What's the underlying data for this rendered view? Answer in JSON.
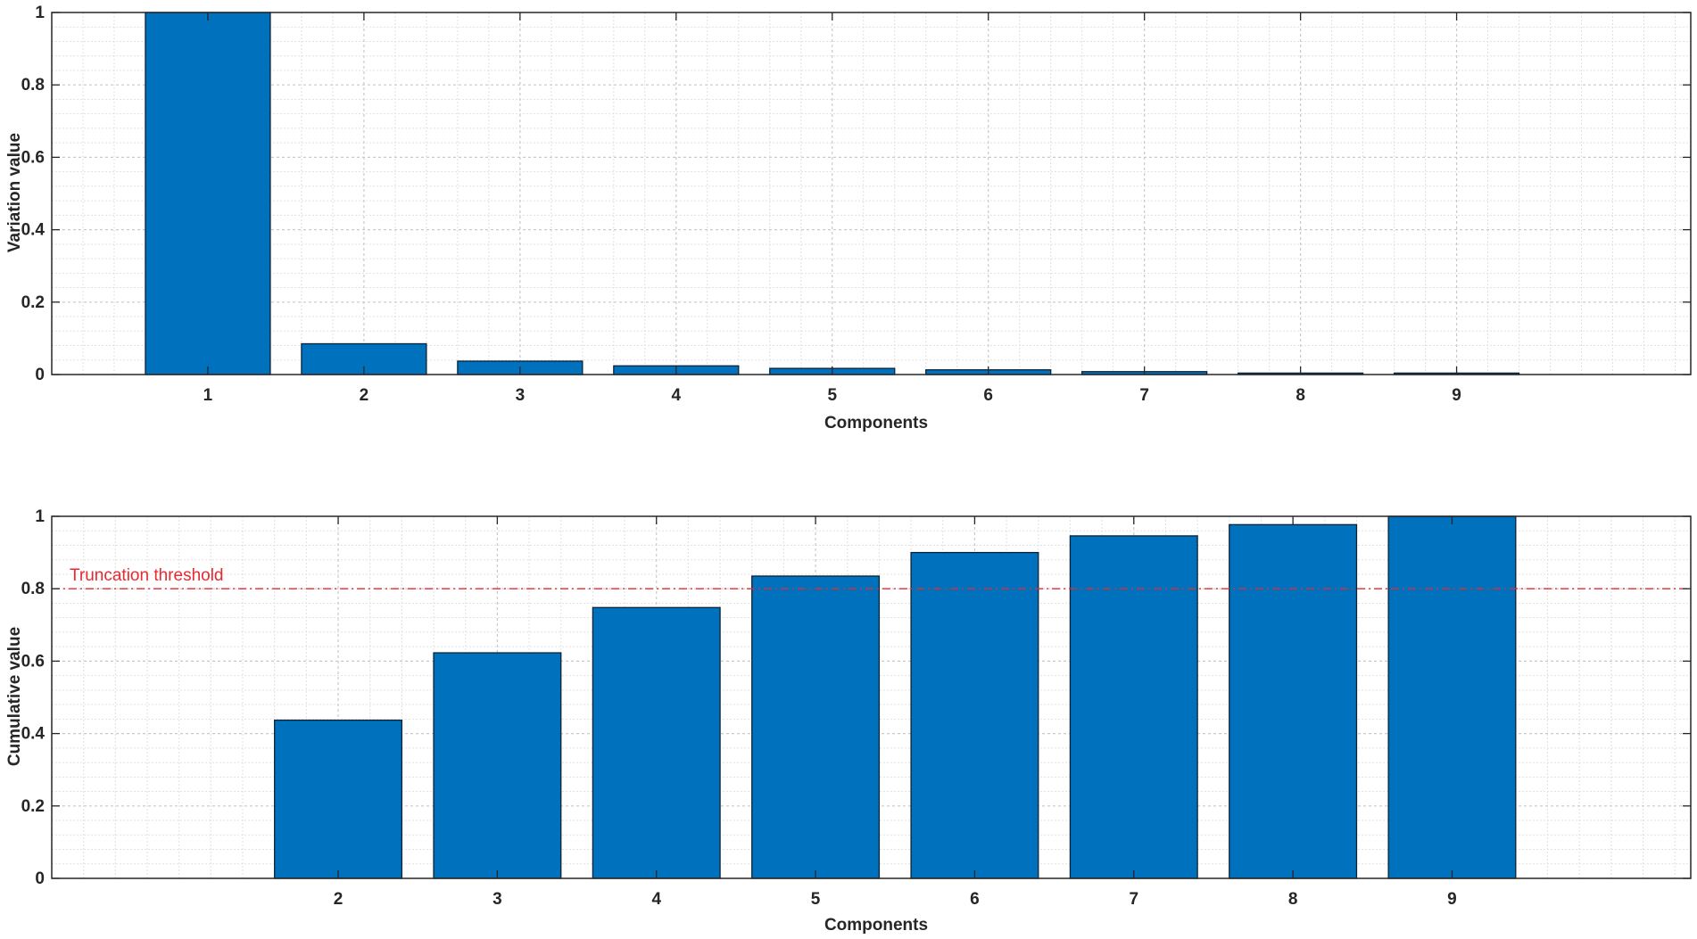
{
  "colors": {
    "bar_fill": "#0072bd",
    "bar_edge": "#0b2236",
    "threshold": "#e8292f",
    "major_grid": "#c9c9c9",
    "minor_grid": "#e1e1e1",
    "axes": "#262626"
  },
  "chart_data": [
    {
      "type": "bar",
      "categories": [
        "1",
        "2",
        "3",
        "4",
        "5",
        "6",
        "7",
        "8",
        "9"
      ],
      "values": [
        1.0,
        0.085,
        0.037,
        0.024,
        0.017,
        0.013,
        0.008,
        0.004,
        0.004
      ],
      "xlabel": "Components",
      "ylabel": "Variation value",
      "xlim": [
        0,
        10.5
      ],
      "ylim": [
        0,
        1
      ],
      "yticks": [
        "0",
        "0.2",
        "0.4",
        "0.6",
        "0.8",
        "1"
      ],
      "grid": "on (major and minor)",
      "legend": "none"
    },
    {
      "type": "bar",
      "categories": [
        "2",
        "3",
        "4",
        "5",
        "6",
        "7",
        "8",
        "9"
      ],
      "values": [
        0.437,
        0.623,
        0.748,
        0.835,
        0.9,
        0.946,
        0.977,
        1.0
      ],
      "xlabel": "Components",
      "ylabel": "Cumulative value",
      "xlim": [
        0.2,
        10.5
      ],
      "ylim": [
        0,
        1
      ],
      "yticks": [
        "0",
        "0.2",
        "0.4",
        "0.6",
        "0.8",
        "1"
      ],
      "grid": "on (major and minor)",
      "legend": "none",
      "reference_line": {
        "y": 0.8,
        "style": "dash-dot",
        "label": "Truncation threshold"
      }
    }
  ]
}
